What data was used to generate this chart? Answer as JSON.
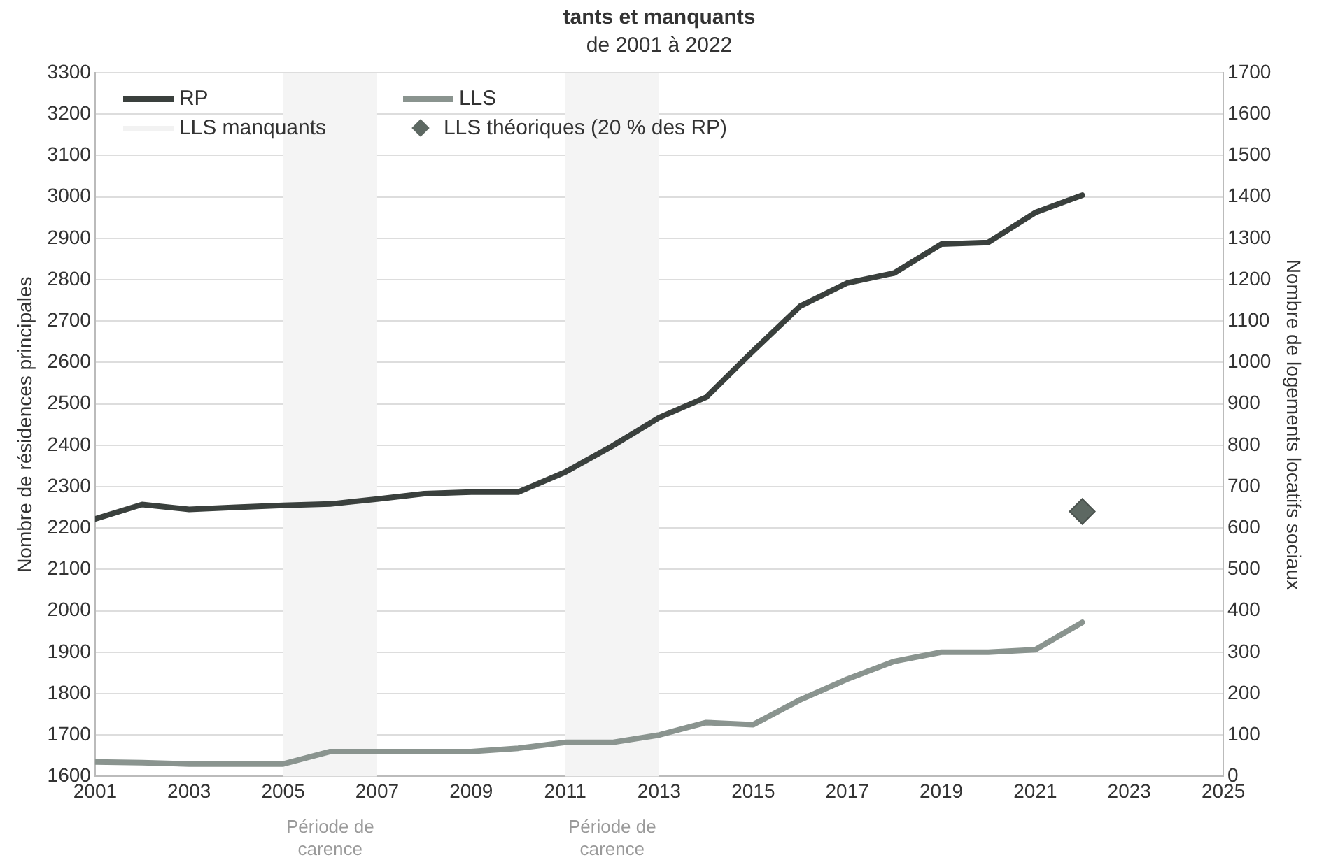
{
  "chart_data": {
    "type": "line",
    "title": "tants et manquants",
    "subtitle": "de 2001 à 2022",
    "ylabel": "Nombre de résidences principales",
    "y2label": "Nombre de logements locatifs sociaux",
    "x": [
      2001,
      2002,
      2003,
      2004,
      2005,
      2006,
      2007,
      2008,
      2009,
      2010,
      2011,
      2012,
      2013,
      2014,
      2015,
      2016,
      2017,
      2018,
      2019,
      2020,
      2021,
      2022
    ],
    "xlim": [
      2001,
      2025
    ],
    "xticks": [
      2001,
      2003,
      2005,
      2007,
      2009,
      2011,
      2013,
      2015,
      2017,
      2019,
      2021,
      2023,
      2025
    ],
    "ylim": [
      1600,
      3300
    ],
    "yticks": [
      1600,
      1700,
      1800,
      1900,
      2000,
      2100,
      2200,
      2300,
      2400,
      2500,
      2600,
      2700,
      2800,
      2900,
      3000,
      3100,
      3200,
      3300
    ],
    "y2lim": [
      0,
      1700
    ],
    "y2ticks": [
      0,
      100,
      200,
      300,
      400,
      500,
      600,
      700,
      800,
      900,
      1000,
      1100,
      1200,
      1300,
      1400,
      1500,
      1600,
      1700
    ],
    "series": [
      {
        "name": "RP",
        "color": "#3a403d",
        "values": [
          2222,
          2257,
          2245,
          2250,
          2255,
          2258,
          2270,
          2283,
          2287,
          2287,
          2335,
          2398,
          2467,
          2516,
          2628,
          2736,
          2792,
          2816,
          2886,
          2890,
          2962,
          3004
        ]
      },
      {
        "name": "LLS",
        "color": "#8a948f",
        "axis": "y2",
        "values": [
          35,
          33,
          30,
          30,
          30,
          60,
          60,
          60,
          60,
          68,
          82,
          82,
          100,
          130,
          125,
          185,
          235,
          278,
          300,
          300,
          306,
          372
        ]
      },
      {
        "name": "LLS manquants",
        "color": "#f2f2f2",
        "axis": "y2",
        "values": [
          null,
          null,
          null,
          null,
          null,
          null,
          null,
          null,
          null,
          null,
          null,
          null,
          null,
          null,
          null,
          null,
          null,
          null,
          null,
          null,
          null,
          null
        ]
      },
      {
        "name": "LLS théoriques (20 % des RP)",
        "type": "scatter",
        "marker": "diamond",
        "color": "#5d6862",
        "axis": "y2",
        "x": [
          2022
        ],
        "values": [
          640
        ]
      }
    ],
    "bands": [
      {
        "axis": "x",
        "from": 2005,
        "to": 2007,
        "label": "Période de carence",
        "color": "#f4f4f4"
      },
      {
        "axis": "x",
        "from": 2011,
        "to": 2013,
        "label": "Période de carence",
        "color": "#f4f4f4"
      }
    ],
    "grid": "y",
    "legend": "top left",
    "marker": "none"
  }
}
